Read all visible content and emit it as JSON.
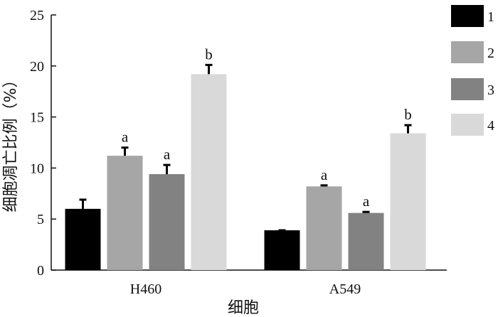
{
  "chart_data": {
    "type": "bar",
    "xlabel": "细胞",
    "ylabel": "细胞凋亡比例（%）",
    "ylim": [
      0,
      25
    ],
    "yticks": [
      0,
      5,
      10,
      15,
      20,
      25
    ],
    "categories": [
      "H460",
      "A549"
    ],
    "series": [
      {
        "name": "1",
        "color": "#000000",
        "values": [
          6.0,
          3.9
        ],
        "errors": [
          0.9,
          0.0
        ],
        "sig": [
          "",
          ""
        ]
      },
      {
        "name": "2",
        "color": "#a6a6a6",
        "values": [
          11.2,
          8.2
        ],
        "errors": [
          0.8,
          0.1
        ],
        "sig": [
          "a",
          "a"
        ]
      },
      {
        "name": "3",
        "color": "#828282",
        "values": [
          9.4,
          5.6
        ],
        "errors": [
          0.9,
          0.1
        ],
        "sig": [
          "a",
          "a"
        ]
      },
      {
        "name": "4",
        "color": "#d9d9d9",
        "values": [
          19.2,
          13.4
        ],
        "errors": [
          0.9,
          0.8
        ],
        "sig": [
          "b",
          "b"
        ]
      }
    ],
    "legend": "right",
    "grid": false
  }
}
